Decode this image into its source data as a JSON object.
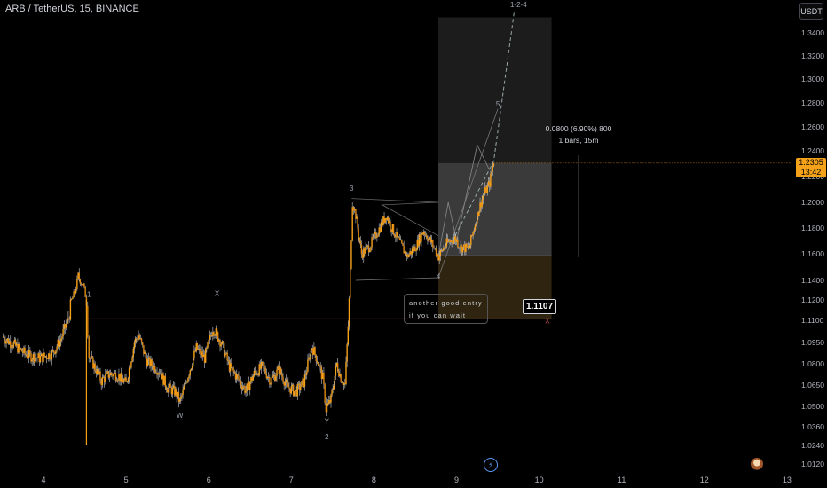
{
  "header": {
    "symbol": "ARB / TetherUS, 15, BINANCE",
    "currency": "USDT"
  },
  "colors": {
    "background": "#000000",
    "candle": "#f5a21b",
    "wick": "#c9c9c9",
    "profit_zone": "#3a3a3a",
    "loss_zone": "#2e2410",
    "price_tag": "#f5a21b"
  },
  "icons": {
    "bolt": "bolt-icon",
    "avatar": "avatar-icon"
  },
  "chart_data": {
    "type": "candlestick",
    "title": "",
    "x_ticks": [
      "4",
      "5",
      "6",
      "7",
      "8",
      "9",
      "10",
      "11",
      "12",
      "13"
    ],
    "y_ticks": [
      "1.3400",
      "1.3200",
      "1.3000",
      "1.2800",
      "1.2600",
      "1.2400",
      "1.2200",
      "1.2000",
      "1.1800",
      "1.1600",
      "1.1400",
      "1.1200",
      "1.1100",
      "1.0950",
      "1.0800",
      "1.0650",
      "1.0500",
      "1.0360",
      "1.0240",
      "1.0120"
    ],
    "ylim": [
      1.01,
      1.35
    ],
    "xlim": [
      3.5,
      13.5
    ],
    "grid": false,
    "last_price": {
      "value": "1.2305",
      "countdown": "13:42"
    },
    "entry_price": "1.1107",
    "position": {
      "x_start": 8.78,
      "x_end": 10.15,
      "entry": 1.1585,
      "target": 1.347,
      "stop": 1.1107,
      "current": 1.2305
    },
    "price_path": [
      [
        3.5,
        1.099
      ],
      [
        3.65,
        1.093
      ],
      [
        3.8,
        1.086
      ],
      [
        3.95,
        1.084
      ],
      [
        4.1,
        1.087
      ],
      [
        4.2,
        1.096
      ],
      [
        4.3,
        1.111
      ],
      [
        4.38,
        1.128
      ],
      [
        4.42,
        1.143
      ],
      [
        4.48,
        1.135
      ],
      [
        4.52,
        1.12
      ],
      [
        4.55,
        1.085
      ],
      [
        4.6,
        1.08
      ],
      [
        4.7,
        1.068
      ],
      [
        4.8,
        1.073
      ],
      [
        4.9,
        1.072
      ],
      [
        5.0,
        1.066
      ],
      [
        5.1,
        1.095
      ],
      [
        5.15,
        1.1
      ],
      [
        5.25,
        1.082
      ],
      [
        5.4,
        1.075
      ],
      [
        5.5,
        1.063
      ],
      [
        5.6,
        1.06
      ],
      [
        5.65,
        1.053
      ],
      [
        5.75,
        1.072
      ],
      [
        5.85,
        1.091
      ],
      [
        5.95,
        1.084
      ],
      [
        6.05,
        1.105
      ],
      [
        6.15,
        1.095
      ],
      [
        6.25,
        1.078
      ],
      [
        6.35,
        1.07
      ],
      [
        6.45,
        1.061
      ],
      [
        6.55,
        1.073
      ],
      [
        6.65,
        1.078
      ],
      [
        6.75,
        1.068
      ],
      [
        6.85,
        1.076
      ],
      [
        6.95,
        1.064
      ],
      [
        7.05,
        1.06
      ],
      [
        7.15,
        1.067
      ],
      [
        7.25,
        1.092
      ],
      [
        7.3,
        1.085
      ],
      [
        7.38,
        1.07
      ],
      [
        7.42,
        1.048
      ],
      [
        7.48,
        1.055
      ],
      [
        7.55,
        1.08
      ],
      [
        7.6,
        1.07
      ],
      [
        7.65,
        1.065
      ],
      [
        7.7,
        1.12
      ],
      [
        7.74,
        1.2
      ],
      [
        7.78,
        1.19
      ],
      [
        7.85,
        1.16
      ],
      [
        7.95,
        1.166
      ],
      [
        8.05,
        1.178
      ],
      [
        8.15,
        1.19
      ],
      [
        8.2,
        1.182
      ],
      [
        8.3,
        1.17
      ],
      [
        8.4,
        1.158
      ],
      [
        8.5,
        1.165
      ],
      [
        8.6,
        1.178
      ],
      [
        8.7,
        1.168
      ],
      [
        8.78,
        1.158
      ],
      [
        8.88,
        1.168
      ],
      [
        8.98,
        1.172
      ],
      [
        9.05,
        1.165
      ],
      [
        9.15,
        1.164
      ],
      [
        9.25,
        1.19
      ],
      [
        9.32,
        1.205
      ],
      [
        9.4,
        1.215
      ],
      [
        9.45,
        1.232
      ]
    ],
    "wave_labels": [
      {
        "text": "1",
        "x": 4.55,
        "y": 1.123
      },
      {
        "text": "X",
        "x": 6.1,
        "y": 1.124
      },
      {
        "text": "W",
        "x": 5.65,
        "y": 1.042
      },
      {
        "text": "Y",
        "x": 7.43,
        "y": 1.038
      },
      {
        "text": "2",
        "x": 7.43,
        "y": 1.028
      },
      {
        "text": "3",
        "x": 7.73,
        "y": 1.209
      },
      {
        "text": "4",
        "x": 8.78,
        "y": 1.141
      },
      {
        "text": "5",
        "x": 9.5,
        "y": 1.277
      },
      {
        "text": "1-2-4",
        "x": 9.75,
        "y": 1.353
      },
      {
        "text": "X",
        "x": 10.1,
        "y": 1.108
      }
    ],
    "measure": {
      "line1": "0.0800 (6.90%) 800",
      "line2": "1 bars, 15m"
    },
    "note": {
      "line1": "another good entry",
      "line2": "if you can wait"
    }
  }
}
